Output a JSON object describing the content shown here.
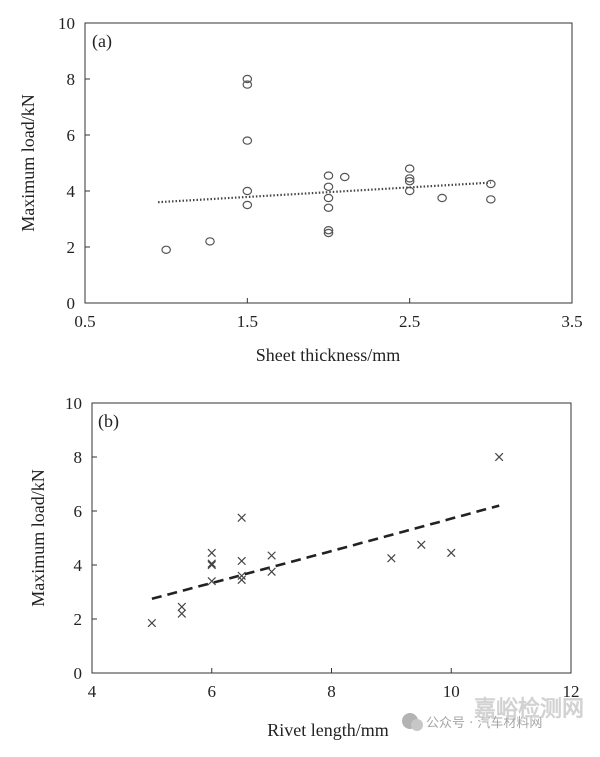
{
  "chart_data": [
    {
      "type": "scatter",
      "panel_label": "(a)",
      "xlabel": "Sheet thickness/mm",
      "ylabel": "Maximum load/kN",
      "xlim": [
        0.5,
        3.5
      ],
      "ylim": [
        0,
        10
      ],
      "x_ticks": [
        0.5,
        1.5,
        2.5,
        3.5
      ],
      "x_tick_labels": [
        "0.5",
        "1.5",
        "2.5",
        "3.5"
      ],
      "y_ticks": [
        0,
        2,
        4,
        6,
        8,
        10
      ],
      "y_tick_labels": [
        "0",
        "2",
        "4",
        "6",
        "8",
        "10"
      ],
      "marker": "circle",
      "points": [
        {
          "x": 1.0,
          "y": 1.9
        },
        {
          "x": 1.27,
          "y": 2.2
        },
        {
          "x": 1.5,
          "y": 8.0
        },
        {
          "x": 1.5,
          "y": 7.8
        },
        {
          "x": 1.5,
          "y": 5.8
        },
        {
          "x": 1.5,
          "y": 4.0
        },
        {
          "x": 1.5,
          "y": 3.5
        },
        {
          "x": 2.0,
          "y": 4.55
        },
        {
          "x": 2.0,
          "y": 4.15
        },
        {
          "x": 2.0,
          "y": 3.75
        },
        {
          "x": 2.0,
          "y": 3.4
        },
        {
          "x": 2.0,
          "y": 2.6
        },
        {
          "x": 2.0,
          "y": 2.5
        },
        {
          "x": 2.1,
          "y": 4.5
        },
        {
          "x": 2.5,
          "y": 4.8
        },
        {
          "x": 2.5,
          "y": 4.45
        },
        {
          "x": 2.5,
          "y": 4.35
        },
        {
          "x": 2.5,
          "y": 4.0
        },
        {
          "x": 2.7,
          "y": 3.75
        },
        {
          "x": 3.0,
          "y": 4.25
        },
        {
          "x": 3.0,
          "y": 3.7
        }
      ],
      "trend": {
        "style": "dotted",
        "x": [
          0.95,
          3.0
        ],
        "y": [
          3.6,
          4.3
        ]
      }
    },
    {
      "type": "scatter",
      "panel_label": "(b)",
      "xlabel": "Rivet length/mm",
      "ylabel": "Maximum load/kN",
      "xlim": [
        4,
        12
      ],
      "ylim": [
        0,
        10
      ],
      "x_ticks": [
        4,
        6,
        8,
        10,
        12
      ],
      "x_tick_labels": [
        "4",
        "6",
        "8",
        "10",
        "12"
      ],
      "y_ticks": [
        0,
        2,
        4,
        6,
        8,
        10
      ],
      "y_tick_labels": [
        "0",
        "2",
        "4",
        "6",
        "8",
        "10"
      ],
      "marker": "cross",
      "points": [
        {
          "x": 5.0,
          "y": 1.85
        },
        {
          "x": 5.5,
          "y": 2.45
        },
        {
          "x": 5.5,
          "y": 2.2
        },
        {
          "x": 6.0,
          "y": 4.45
        },
        {
          "x": 6.0,
          "y": 4.05
        },
        {
          "x": 6.0,
          "y": 4.0
        },
        {
          "x": 6.0,
          "y": 3.4
        },
        {
          "x": 6.5,
          "y": 5.75
        },
        {
          "x": 6.5,
          "y": 4.15
        },
        {
          "x": 6.5,
          "y": 3.6
        },
        {
          "x": 6.5,
          "y": 3.45
        },
        {
          "x": 7.0,
          "y": 4.35
        },
        {
          "x": 7.0,
          "y": 3.75
        },
        {
          "x": 9.0,
          "y": 4.25
        },
        {
          "x": 9.5,
          "y": 4.75
        },
        {
          "x": 10.0,
          "y": 4.45
        },
        {
          "x": 10.8,
          "y": 8.0
        }
      ],
      "trend": {
        "style": "dashed",
        "type": "power",
        "from_x": 5.0,
        "to_x": 10.8,
        "from_y": 2.75,
        "to_y": 6.2
      }
    }
  ],
  "watermark": {
    "account": "公众号 · 汽车材料网",
    "brand": "嘉峪检测网"
  }
}
